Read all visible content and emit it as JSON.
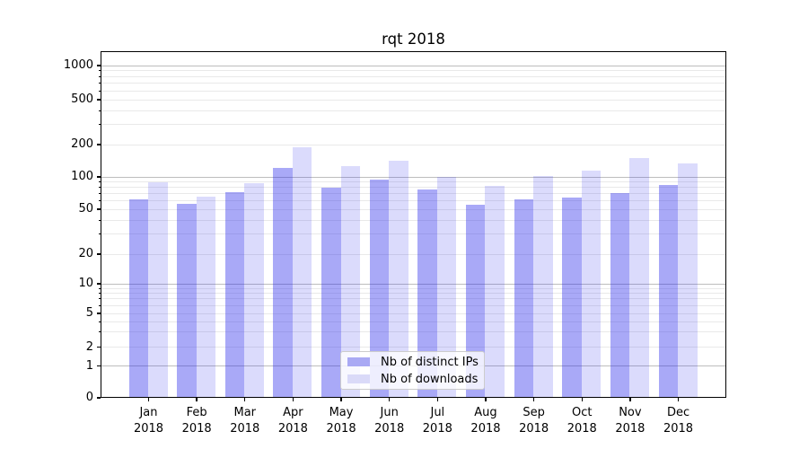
{
  "chart_data": {
    "type": "bar",
    "title": "rqt 2018",
    "categories": [
      "Jan",
      "Feb",
      "Mar",
      "Apr",
      "May",
      "Jun",
      "Jul",
      "Aug",
      "Sep",
      "Oct",
      "Nov",
      "Dec"
    ],
    "x_sublabel": "2018",
    "series": [
      {
        "name": "Nb of distinct IPs",
        "color": "rgba(40,40,235,0.40)",
        "color_flat": "#a9a9f4",
        "values": [
          61,
          56,
          72,
          121,
          79,
          93,
          75,
          55,
          61,
          64,
          70,
          84
        ]
      },
      {
        "name": "Nb of downloads",
        "color": "rgba(40,40,235,0.17)",
        "color_flat": "#dadaf8",
        "values": [
          89,
          65,
          86,
          186,
          124,
          141,
          99,
          82,
          101,
          114,
          148,
          131
        ]
      }
    ],
    "yscale": "symlog",
    "ylim": [
      0,
      1400
    ],
    "yticks": [
      0,
      1,
      2,
      5,
      10,
      20,
      50,
      100,
      200,
      500,
      1000
    ],
    "major_gridlines": [
      1,
      10,
      100,
      1000
    ],
    "minor_gridlines": [
      2,
      3,
      4,
      5,
      6,
      7,
      8,
      9,
      20,
      30,
      40,
      50,
      60,
      70,
      80,
      90,
      200,
      300,
      400,
      500,
      600,
      700,
      800,
      900
    ],
    "grid": true,
    "legend_position": "lower center"
  }
}
